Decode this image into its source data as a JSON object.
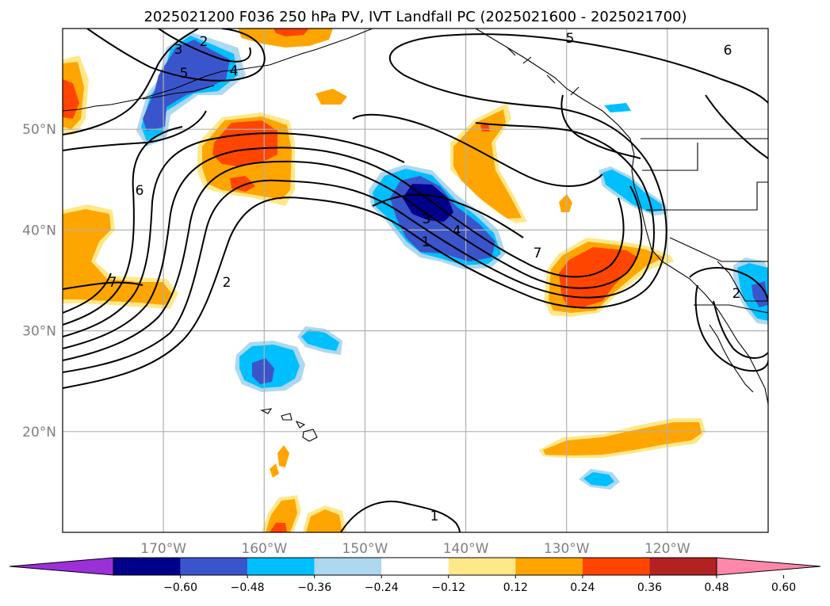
{
  "title": "2025021200 F036 250 hPa PV, IVT Landfall PC (2025021600 - 2025021700)",
  "map": {
    "lon_range": [
      -180,
      -110
    ],
    "lat_range": [
      10,
      60
    ],
    "gridlines": true,
    "lon_ticks": [
      {
        "lon": -170,
        "label": "170°W"
      },
      {
        "lon": -160,
        "label": "160°W"
      },
      {
        "lon": -150,
        "label": "150°W"
      },
      {
        "lon": -140,
        "label": "140°W"
      },
      {
        "lon": -130,
        "label": "130°W"
      },
      {
        "lon": -120,
        "label": "120°W"
      }
    ],
    "lat_ticks": [
      {
        "lat": 20,
        "label": "20°N"
      },
      {
        "lat": 30,
        "label": "30°N"
      },
      {
        "lat": 40,
        "label": "40°N"
      },
      {
        "lat": 50,
        "label": "50°N"
      }
    ],
    "contour_labels": [
      "2",
      "3",
      "5",
      "4",
      "5",
      "6",
      "6",
      "7",
      "2",
      "3",
      "4",
      "1",
      "7",
      "2",
      "1"
    ]
  },
  "colorbar": {
    "ticks": [
      "−0.60",
      "−0.48",
      "−0.36",
      "−0.24",
      "−0.12",
      "0.12",
      "0.24",
      "0.36",
      "0.48",
      "0.60"
    ],
    "colors": [
      "#9b30d9",
      "#00008b",
      "#3a55cc",
      "#00bfff",
      "#add8f0",
      "#ffffff",
      "#ffe88a",
      "#ffa500",
      "#ff4500",
      "#b22222",
      "#ff88aa"
    ],
    "extend": "both"
  },
  "colors": {
    "blue_dark": "#00008b",
    "blue_mid": "#3a55cc",
    "blue_light": "#00bfff",
    "blue_pale": "#add8f0",
    "yellow": "#ffe88a",
    "orange": "#ffa500",
    "red_orange": "#ff4500",
    "contour": "#000000",
    "grid": "#b0b0b0"
  }
}
